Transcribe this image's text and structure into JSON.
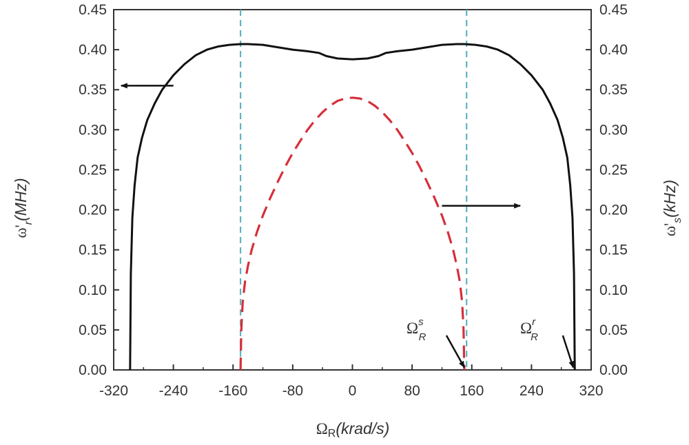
{
  "chart_data": {
    "type": "line",
    "x_axis": {
      "symbol": "Ω",
      "subscript": "R",
      "unit": "(krad/s)",
      "range": [
        -320,
        320
      ],
      "ticks": [
        "-320",
        "-240",
        "-160",
        "-80",
        "0",
        "80",
        "160",
        "240",
        "320"
      ]
    },
    "y_axis_left": {
      "symbol": "ω'",
      "subscript": "r",
      "unit": "(MHz)",
      "range": [
        0,
        0.45
      ],
      "ticks": [
        "0.00",
        "0.05",
        "0.10",
        "0.15",
        "0.20",
        "0.25",
        "0.30",
        "0.35",
        "0.40",
        "0.45"
      ]
    },
    "y_axis_right": {
      "symbol": "ω'",
      "subscript": "s",
      "unit": "(kHz)",
      "range": [
        0,
        0.45
      ],
      "ticks": [
        "0.00",
        "0.05",
        "0.10",
        "0.15",
        "0.20",
        "0.25",
        "0.30",
        "0.35",
        "0.40",
        "0.45"
      ]
    },
    "series": [
      {
        "axis": "left",
        "color": "#111111",
        "style": "solid",
        "x": [
          -298,
          -297,
          -295,
          -292,
          -288,
          -282,
          -275,
          -265,
          -255,
          -240,
          -225,
          -210,
          -195,
          -180,
          -165,
          -150,
          -140,
          -120,
          -100,
          -80,
          -60,
          -45,
          -35,
          -20,
          0,
          20,
          35,
          45,
          60,
          80,
          100,
          120,
          140,
          150,
          165,
          180,
          195,
          210,
          225,
          240,
          255,
          265,
          275,
          282,
          288,
          292,
          295,
          297,
          298
        ],
        "y": [
          0.0,
          0.12,
          0.19,
          0.23,
          0.265,
          0.29,
          0.312,
          0.333,
          0.35,
          0.368,
          0.382,
          0.393,
          0.4,
          0.404,
          0.406,
          0.407,
          0.407,
          0.406,
          0.403,
          0.4,
          0.398,
          0.396,
          0.392,
          0.389,
          0.388,
          0.389,
          0.392,
          0.396,
          0.398,
          0.4,
          0.403,
          0.406,
          0.407,
          0.407,
          0.406,
          0.404,
          0.4,
          0.393,
          0.382,
          0.368,
          0.35,
          0.333,
          0.312,
          0.29,
          0.265,
          0.23,
          0.19,
          0.12,
          0.0
        ]
      },
      {
        "axis": "right",
        "color": "#d62f3a",
        "style": "dashed",
        "x": [
          -150,
          -149,
          -147,
          -144,
          -140,
          -135,
          -128,
          -120,
          -110,
          -100,
          -90,
          -80,
          -70,
          -60,
          -50,
          -40,
          -30,
          -20,
          -10,
          0,
          10,
          20,
          30,
          40,
          50,
          60,
          70,
          80,
          90,
          100,
          110,
          120,
          128,
          135,
          140,
          144,
          147,
          149,
          150
        ],
        "y": [
          0.0,
          0.05,
          0.085,
          0.11,
          0.13,
          0.15,
          0.172,
          0.193,
          0.215,
          0.235,
          0.254,
          0.271,
          0.286,
          0.3,
          0.312,
          0.322,
          0.33,
          0.336,
          0.339,
          0.34,
          0.339,
          0.336,
          0.33,
          0.322,
          0.312,
          0.3,
          0.286,
          0.271,
          0.254,
          0.235,
          0.215,
          0.193,
          0.172,
          0.15,
          0.13,
          0.11,
          0.085,
          0.05,
          0.0
        ]
      }
    ],
    "reference_lines": [
      {
        "orientation": "vertical",
        "x": -150,
        "color": "#5fb3c2",
        "style": "dashed"
      },
      {
        "orientation": "vertical",
        "x": 153,
        "color": "#5fb3c2",
        "style": "dashed"
      }
    ],
    "annotations": [
      {
        "kind": "arrow",
        "from": [
          -240,
          0.355
        ],
        "to": [
          -310,
          0.355
        ],
        "meaning": "left curve uses left axis"
      },
      {
        "kind": "arrow",
        "from": [
          120,
          0.205
        ],
        "to": [
          225,
          0.205
        ],
        "meaning": "right curve uses right axis"
      },
      {
        "kind": "label-arrow",
        "symbol": "Ω",
        "sub": "R",
        "sup": "s",
        "label_at": [
          84,
          0.055
        ],
        "to": [
          150,
          0.003
        ]
      },
      {
        "kind": "label-arrow",
        "symbol": "Ω",
        "sub": "R",
        "sup": "r",
        "label_at": [
          240,
          0.055
        ],
        "to": [
          296,
          0.003
        ]
      }
    ],
    "grid": false,
    "legend": "none"
  }
}
